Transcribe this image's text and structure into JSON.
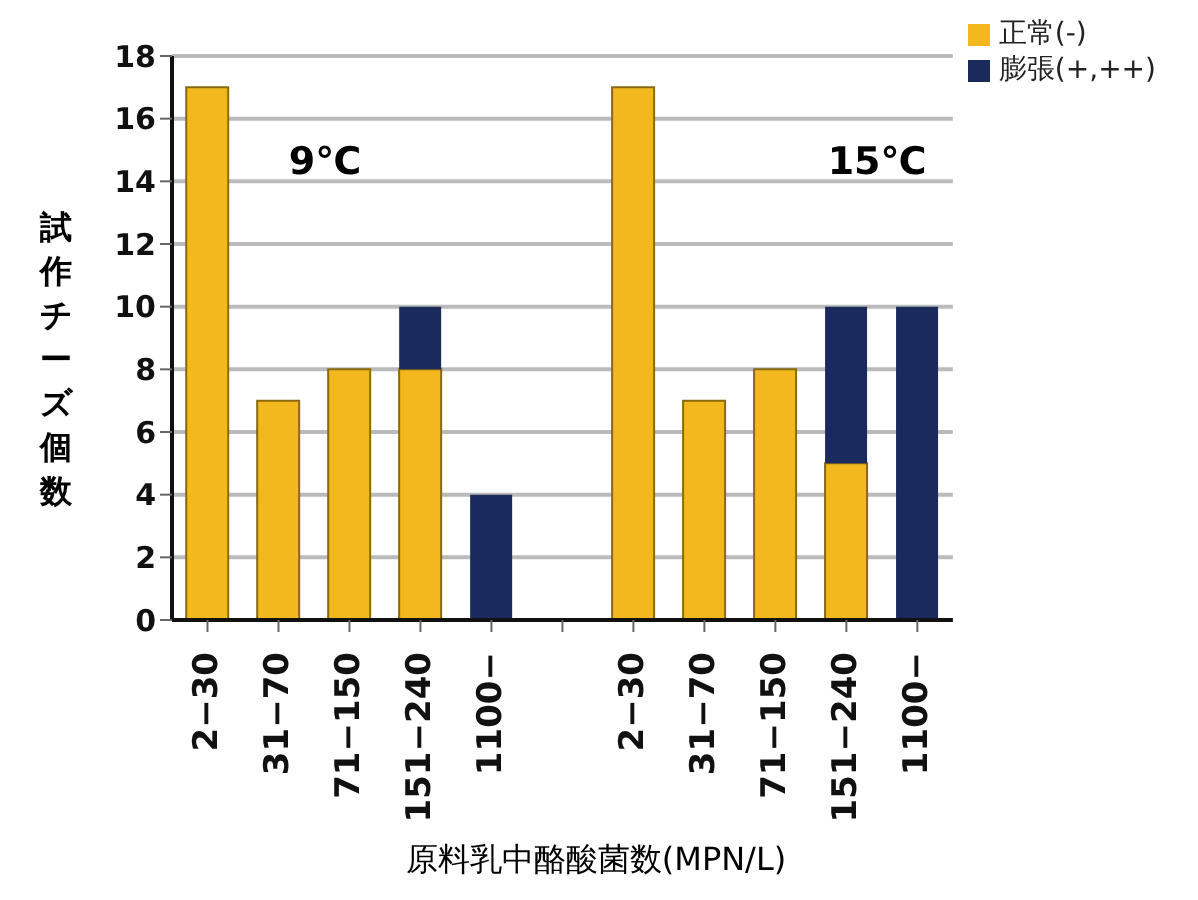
{
  "chart_data": {
    "type": "bar",
    "xlabel": "原料乳中酪酸菌数(MPN/L)",
    "ylabel": "試作チーズ個数",
    "categories": [
      "2−30",
      "31−70",
      "71−150",
      "151−240",
      "1100−",
      null,
      "2−30",
      "31−70",
      "71−150",
      "151−240",
      "1100−"
    ],
    "stacked": true,
    "series": [
      {
        "name": "正常(-)",
        "color": "#f2b81e",
        "values": [
          17,
          7,
          8,
          8,
          0,
          null,
          17,
          7,
          8,
          5,
          0
        ]
      },
      {
        "name": "膨張(+,++)",
        "color": "#1b2a5c",
        "values": [
          0,
          0,
          0,
          2,
          4,
          null,
          0,
          0,
          0,
          5,
          10
        ]
      }
    ],
    "ylim": [
      0,
      18
    ],
    "yticks": [
      0,
      2,
      4,
      6,
      8,
      10,
      12,
      14,
      16,
      18
    ],
    "grid": "y",
    "legend": "top right",
    "annotations": [
      "9℃",
      "15℃"
    ]
  }
}
